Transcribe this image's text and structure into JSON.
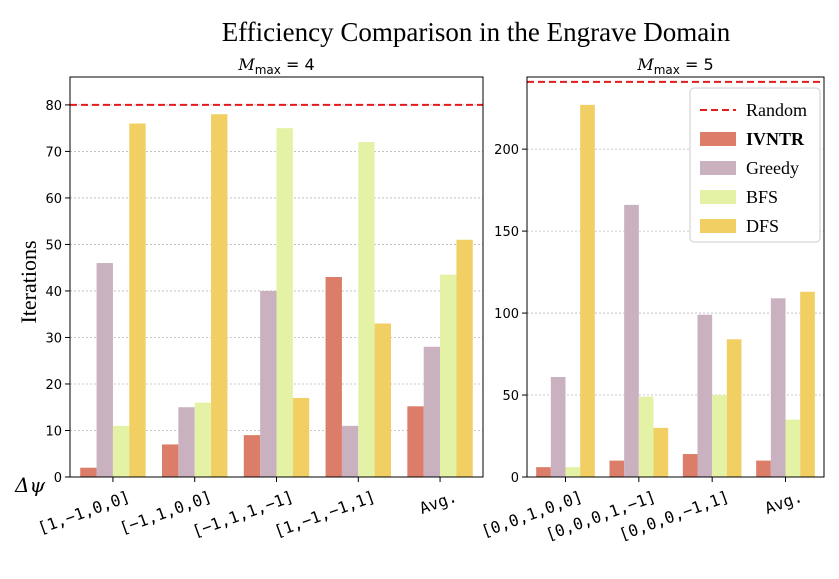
{
  "title": "Efficiency Comparison in the Engrave Domain",
  "ylabel": "Iterations",
  "xaxis_symbol": "Δψ",
  "colors": {
    "Random": "#e41a1c",
    "IVNTR": "#db7d68",
    "Greedy": "#c9b1bf",
    "BFS": "#e4f2a6",
    "DFS": "#f1cf63",
    "grid": "#b9b9b9"
  },
  "legend": [
    "Random",
    "IVNTR",
    "Greedy",
    "BFS",
    "DFS"
  ],
  "chart_data": [
    {
      "type": "bar",
      "subtitle": "M_max = 4",
      "subtitle_main": "M",
      "subtitle_sub": "max",
      "subtitle_rest": " = 4",
      "categories": [
        "[1,−1,0,0]",
        "[−1,1,0,0]",
        "[−1,1,1,−1]",
        "[1,−1,−1,1]",
        "Avg."
      ],
      "series": [
        {
          "name": "IVNTR",
          "values": [
            2,
            7,
            9,
            43,
            15.2
          ]
        },
        {
          "name": "Greedy",
          "values": [
            46,
            15,
            40,
            11,
            28
          ]
        },
        {
          "name": "BFS",
          "values": [
            11,
            16,
            75,
            72,
            43.5
          ]
        },
        {
          "name": "DFS",
          "values": [
            76,
            78,
            17,
            33,
            51
          ]
        }
      ],
      "random_line": 80,
      "ylim": [
        0,
        86
      ],
      "yticks": [
        0,
        10,
        20,
        30,
        40,
        50,
        60,
        70,
        80
      ],
      "grid": true
    },
    {
      "type": "bar",
      "subtitle": "M_max = 5",
      "subtitle_main": "M",
      "subtitle_sub": "max",
      "subtitle_rest": " = 5",
      "categories": [
        "[0,0,1,0,0]",
        "[0,0,0,1,−1]",
        "[0,0,0,−1,1]",
        "Avg."
      ],
      "series": [
        {
          "name": "IVNTR",
          "values": [
            6,
            10,
            14,
            10
          ]
        },
        {
          "name": "Greedy",
          "values": [
            61,
            166,
            99,
            109
          ]
        },
        {
          "name": "BFS",
          "values": [
            6,
            49,
            50,
            35
          ]
        },
        {
          "name": "DFS",
          "values": [
            227,
            30,
            84,
            113
          ]
        }
      ],
      "random_line": 241,
      "ylim": [
        0,
        244
      ],
      "yticks": [
        0,
        50,
        100,
        150,
        200
      ],
      "grid": true,
      "legend_position": "top-right"
    }
  ]
}
